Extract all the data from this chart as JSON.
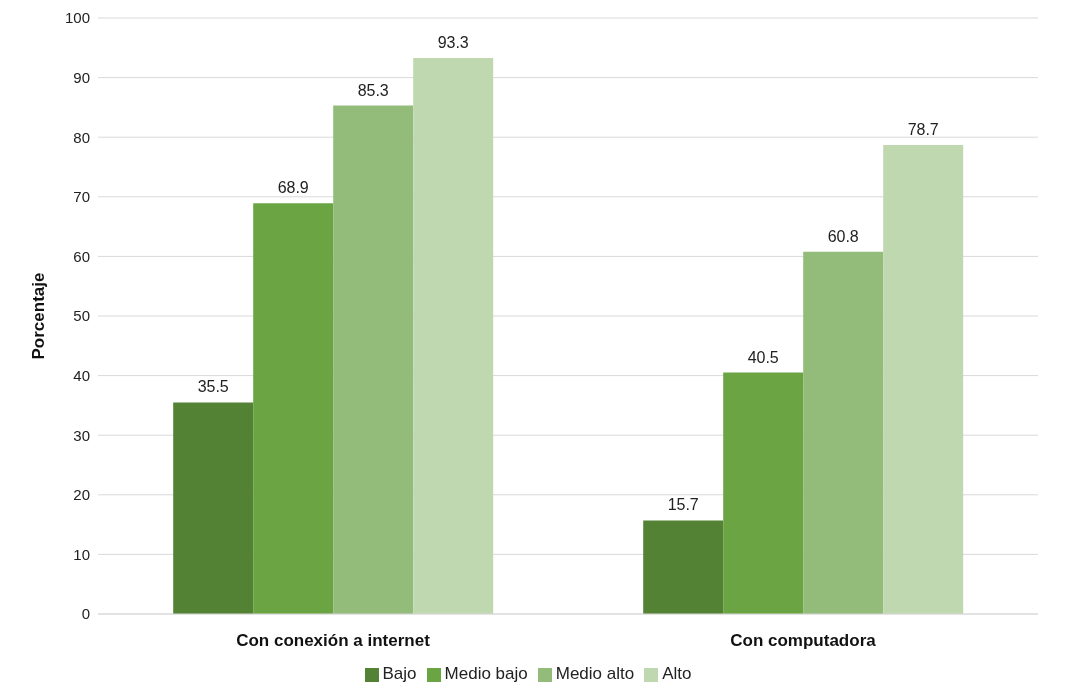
{
  "chart_data": {
    "type": "bar",
    "ylabel": "Porcentaje",
    "categories": [
      "Con conexión a internet",
      "Con computadora"
    ],
    "series": [
      {
        "name": "Bajo",
        "color": "#548235",
        "values": [
          35.5,
          15.7
        ]
      },
      {
        "name": "Medio bajo",
        "color": "#6aa443",
        "values": [
          68.9,
          40.5
        ]
      },
      {
        "name": "Medio alto",
        "color": "#93bc7b",
        "values": [
          85.3,
          60.8
        ]
      },
      {
        "name": "Alto",
        "color": "#c0d8b0",
        "values": [
          93.3,
          78.7
        ]
      }
    ],
    "ylim": [
      0,
      100
    ],
    "yticks": [
      0,
      10,
      20,
      30,
      40,
      50,
      60,
      70,
      80,
      90,
      100
    ],
    "grid": "y",
    "legend": "bottom",
    "data_labels": true
  }
}
